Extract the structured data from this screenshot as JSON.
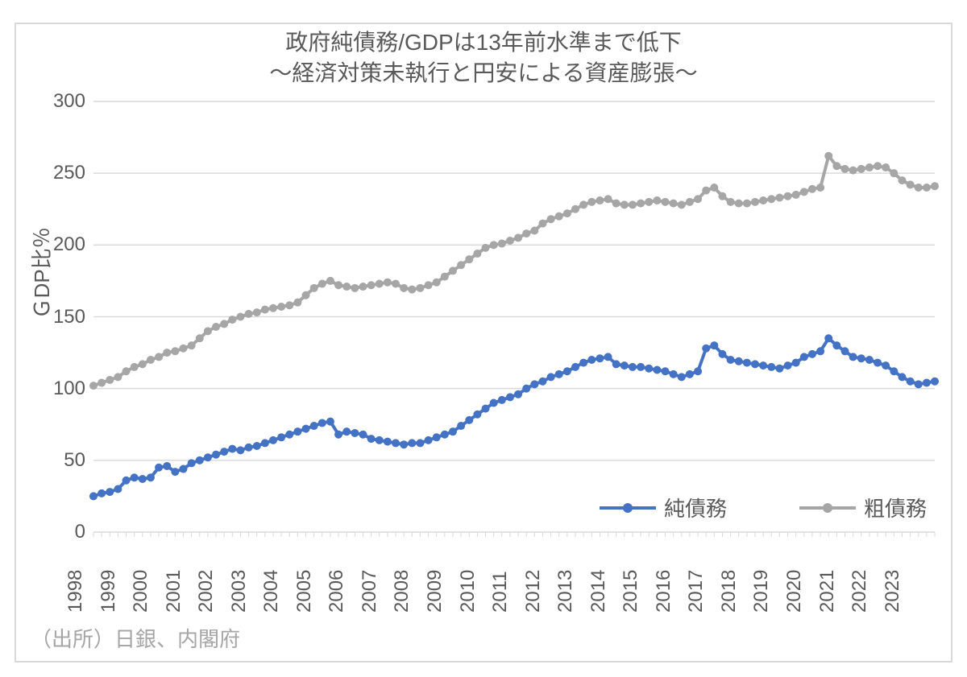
{
  "chart": {
    "type": "line",
    "title": "政府純債務/GDPは13年前水準まで低下",
    "subtitle": "～経済対策未執行と円安による資産膨張～",
    "title_fontsize": 28,
    "title_color": "#595959",
    "ylabel": "ＧDP比％",
    "ylabel_fontsize": 26,
    "background_color": "#ffffff",
    "border_color": "#d9d9d9",
    "grid_color": "#d9d9d9",
    "axis_color": "#d9d9d9",
    "tick_label_color": "#595959",
    "tick_label_fontsize": 24,
    "ylim": [
      0,
      300
    ],
    "ytick_step": 50,
    "yticks": [
      0,
      50,
      100,
      150,
      200,
      250,
      300
    ],
    "xticks_years": [
      "1998",
      "1999",
      "2000",
      "2001",
      "2002",
      "2003",
      "2004",
      "2005",
      "2006",
      "2007",
      "2008",
      "2009",
      "2010",
      "2011",
      "2012",
      "2013",
      "2014",
      "2015",
      "2016",
      "2017",
      "2018",
      "2019",
      "2020",
      "2021",
      "2022",
      "2023"
    ],
    "n_points": 104,
    "line_width": 4,
    "marker_size": 5,
    "marker_style": "circle",
    "legend": {
      "items": [
        {
          "key": "net",
          "label": "純債務",
          "color": "#4472c4"
        },
        {
          "key": "gross",
          "label": "粗債務",
          "color": "#a6a6a6"
        }
      ],
      "fontsize": 26,
      "position": "bottom-right-inside"
    },
    "series": {
      "net": {
        "label": "純債務",
        "color": "#4472c4",
        "values": [
          25,
          27,
          28,
          30,
          36,
          38,
          37,
          38,
          45,
          46,
          42,
          44,
          48,
          50,
          52,
          54,
          56,
          58,
          57,
          59,
          60,
          62,
          64,
          66,
          68,
          70,
          72,
          74,
          76,
          77,
          68,
          70,
          69,
          68,
          65,
          64,
          63,
          62,
          61,
          62,
          62,
          64,
          66,
          68,
          70,
          74,
          78,
          82,
          86,
          90,
          92,
          94,
          96,
          100,
          103,
          105,
          108,
          110,
          112,
          115,
          118,
          120,
          121,
          122,
          117,
          116,
          115,
          115,
          114,
          113,
          112,
          110,
          108,
          110,
          112,
          128,
          130,
          124,
          120,
          119,
          118,
          117,
          116,
          115,
          114,
          116,
          118,
          122,
          124,
          126,
          135,
          130,
          126,
          122,
          121,
          120,
          118,
          116,
          112,
          108,
          105,
          103,
          104,
          105
        ]
      },
      "gross": {
        "label": "粗債務",
        "color": "#a6a6a6",
        "values": [
          102,
          104,
          106,
          108,
          112,
          115,
          117,
          120,
          122,
          125,
          126,
          128,
          130,
          135,
          140,
          143,
          145,
          148,
          150,
          152,
          153,
          155,
          156,
          157,
          158,
          160,
          165,
          170,
          173,
          175,
          172,
          171,
          170,
          171,
          172,
          173,
          174,
          173,
          170,
          169,
          170,
          172,
          174,
          178,
          182,
          186,
          190,
          194,
          198,
          200,
          201,
          203,
          205,
          208,
          210,
          215,
          218,
          220,
          222,
          225,
          228,
          230,
          231,
          232,
          229,
          228,
          228,
          229,
          230,
          231,
          230,
          229,
          228,
          230,
          232,
          238,
          240,
          234,
          230,
          229,
          229,
          230,
          231,
          232,
          233,
          234,
          235,
          237,
          239,
          240,
          262,
          255,
          253,
          252,
          253,
          254,
          255,
          254,
          250,
          245,
          242,
          240,
          240,
          241
        ]
      }
    },
    "source": "（出所）日銀、内閣府",
    "source_color": "#a6a6a6",
    "source_fontsize": 26
  }
}
